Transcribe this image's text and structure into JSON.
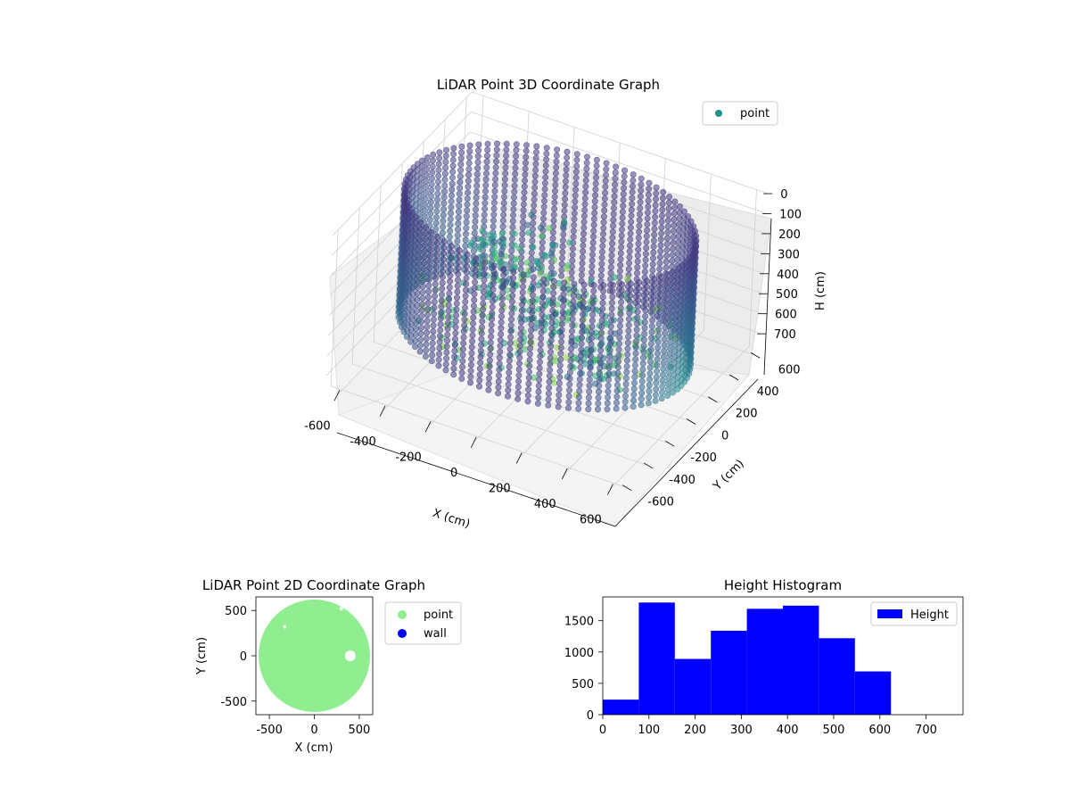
{
  "figure": {
    "background": "#ffffff"
  },
  "chart_data": [
    {
      "type": "scatter3d",
      "title": "LiDAR Point 3D Coordinate Graph",
      "xlabel": "X (cm)",
      "ylabel": "Y (cm)",
      "zlabel": "H (cm)",
      "xlim": [
        -650,
        650
      ],
      "ylim": [
        -650,
        650
      ],
      "zlim": [
        0,
        780
      ],
      "z_inverted": true,
      "xticks": [
        -600,
        -400,
        -200,
        0,
        200,
        400,
        600
      ],
      "yticks": [
        -600,
        -400,
        -200,
        0,
        200,
        400,
        600
      ],
      "zticks": [
        0,
        100,
        200,
        300,
        400,
        500,
        600,
        700
      ],
      "grid": true,
      "legend": {
        "position": "top-right",
        "entries": [
          {
            "label": "point",
            "color": "#21918c"
          }
        ]
      },
      "colormap": "viridis",
      "series": [
        {
          "name": "point",
          "shape": "cylindrical wall of points around the scanner",
          "wall_radius_cm": 600,
          "height_range_cm": [
            0,
            620
          ],
          "interior_clusters": [
            {
              "x": 0,
              "y": 0,
              "h": [
                0,
                600
              ]
            },
            {
              "x": 300,
              "y": -200,
              "h": [
                200,
                600
              ]
            },
            {
              "x": -300,
              "y": 150,
              "h": [
                300,
                600
              ]
            }
          ]
        }
      ]
    },
    {
      "type": "scatter",
      "title": "LiDAR Point 2D Coordinate Graph",
      "xlabel": "X (cm)",
      "ylabel": "Y (cm)",
      "xlim": [
        -650,
        650
      ],
      "ylim": [
        -650,
        650
      ],
      "xticks": [
        -500,
        0,
        500
      ],
      "yticks": [
        -500,
        0,
        500
      ],
      "legend": {
        "position": "outside-right",
        "entries": [
          {
            "label": "point",
            "color": "#90ee90"
          },
          {
            "label": "wall",
            "color": "#0000ff"
          }
        ]
      },
      "series": [
        {
          "name": "point",
          "color": "#90ee90",
          "shape": "filled disk",
          "center": [
            0,
            0
          ],
          "radius": 620
        },
        {
          "name": "wall",
          "color": "#0000ff",
          "points": []
        }
      ]
    },
    {
      "type": "bar",
      "title": "Height Histogram",
      "xlim": [
        0,
        780
      ],
      "ylim": [
        0,
        1880
      ],
      "xticks": [
        0,
        100,
        200,
        300,
        400,
        500,
        600,
        700
      ],
      "yticks": [
        0,
        500,
        1000,
        1500
      ],
      "legend": {
        "position": "top-right",
        "entries": [
          {
            "label": "Height",
            "color": "#0000ff"
          }
        ]
      },
      "bin_edges": [
        0,
        78,
        156,
        234,
        312,
        390,
        468,
        546,
        624,
        702,
        780
      ],
      "values": [
        240,
        1790,
        890,
        1340,
        1690,
        1740,
        1220,
        690,
        0,
        0
      ],
      "color": "#0000ff"
    }
  ]
}
